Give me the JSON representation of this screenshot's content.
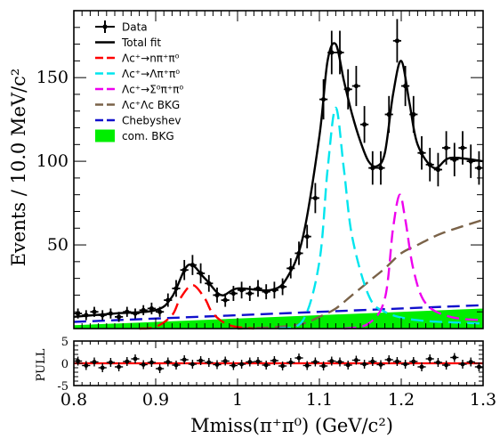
{
  "chart_data": [
    {
      "type": "line",
      "ylabel": "Events / 10.0 MeV/c²",
      "xlim": [
        0.8,
        1.3
      ],
      "ylim": [
        0,
        190
      ],
      "yticks": [
        50,
        100,
        150
      ],
      "grid": false,
      "legend_position": "top-left",
      "legend": [
        {
          "label": "Data",
          "color": "#000000",
          "style": "marker"
        },
        {
          "label": "Total fit",
          "color": "#000000",
          "style": "solid"
        },
        {
          "label": "Λc⁺→nπ⁺π⁰",
          "color": "#ff0000",
          "style": "dashed"
        },
        {
          "label": "Λc⁺→Λπ⁺π⁰",
          "color": "#00e5ee",
          "style": "dashed"
        },
        {
          "label": "Λc⁺→Σ⁰π⁺π⁰",
          "color": "#ee00ee",
          "style": "dashed"
        },
        {
          "label": "Λc⁺Λc BKG",
          "color": "#7a6248",
          "style": "dashed"
        },
        {
          "label": "Chebyshev",
          "color": "#1010cc",
          "style": "dashed"
        },
        {
          "label": "com. BKG",
          "color": "#00ee00",
          "style": "fill"
        }
      ],
      "data_points": [
        {
          "x": 0.805,
          "y": 9,
          "err": 3
        },
        {
          "x": 0.815,
          "y": 8,
          "err": 3
        },
        {
          "x": 0.825,
          "y": 10,
          "err": 3
        },
        {
          "x": 0.835,
          "y": 8,
          "err": 3
        },
        {
          "x": 0.845,
          "y": 9,
          "err": 3
        },
        {
          "x": 0.855,
          "y": 7,
          "err": 3
        },
        {
          "x": 0.865,
          "y": 10,
          "err": 3
        },
        {
          "x": 0.875,
          "y": 9,
          "err": 3
        },
        {
          "x": 0.885,
          "y": 11,
          "err": 3
        },
        {
          "x": 0.895,
          "y": 12,
          "err": 3.5
        },
        {
          "x": 0.905,
          "y": 10,
          "err": 3
        },
        {
          "x": 0.915,
          "y": 17,
          "err": 4
        },
        {
          "x": 0.925,
          "y": 24,
          "err": 5
        },
        {
          "x": 0.935,
          "y": 35,
          "err": 6
        },
        {
          "x": 0.945,
          "y": 38,
          "err": 6
        },
        {
          "x": 0.955,
          "y": 33,
          "err": 6
        },
        {
          "x": 0.965,
          "y": 27,
          "err": 5
        },
        {
          "x": 0.975,
          "y": 20,
          "err": 4.5
        },
        {
          "x": 0.985,
          "y": 17,
          "err": 4
        },
        {
          "x": 0.995,
          "y": 21,
          "err": 4.5
        },
        {
          "x": 1.005,
          "y": 23,
          "err": 5
        },
        {
          "x": 1.015,
          "y": 21,
          "err": 4.5
        },
        {
          "x": 1.025,
          "y": 24,
          "err": 5
        },
        {
          "x": 1.035,
          "y": 22,
          "err": 4.5
        },
        {
          "x": 1.045,
          "y": 23,
          "err": 5
        },
        {
          "x": 1.055,
          "y": 25,
          "err": 5
        },
        {
          "x": 1.065,
          "y": 36,
          "err": 6
        },
        {
          "x": 1.075,
          "y": 45,
          "err": 7
        },
        {
          "x": 1.085,
          "y": 55,
          "err": 7
        },
        {
          "x": 1.095,
          "y": 78,
          "err": 9
        },
        {
          "x": 1.105,
          "y": 137,
          "err": 12
        },
        {
          "x": 1.115,
          "y": 165,
          "err": 13
        },
        {
          "x": 1.125,
          "y": 165,
          "err": 13
        },
        {
          "x": 1.135,
          "y": 143,
          "err": 12
        },
        {
          "x": 1.145,
          "y": 145,
          "err": 12
        },
        {
          "x": 1.155,
          "y": 122,
          "err": 11
        },
        {
          "x": 1.165,
          "y": 96,
          "err": 10
        },
        {
          "x": 1.175,
          "y": 96,
          "err": 10
        },
        {
          "x": 1.185,
          "y": 128,
          "err": 11
        },
        {
          "x": 1.195,
          "y": 172,
          "err": 13
        },
        {
          "x": 1.205,
          "y": 145,
          "err": 12
        },
        {
          "x": 1.215,
          "y": 128,
          "err": 11
        },
        {
          "x": 1.225,
          "y": 105,
          "err": 10
        },
        {
          "x": 1.235,
          "y": 98,
          "err": 10
        },
        {
          "x": 1.245,
          "y": 95,
          "err": 10
        },
        {
          "x": 1.255,
          "y": 108,
          "err": 10
        },
        {
          "x": 1.265,
          "y": 101,
          "err": 10
        },
        {
          "x": 1.275,
          "y": 108,
          "err": 10
        },
        {
          "x": 1.285,
          "y": 100,
          "err": 10
        },
        {
          "x": 1.295,
          "y": 96,
          "err": 10
        }
      ],
      "curves": {
        "total_fit": {
          "x": [
            0.8,
            0.85,
            0.9,
            0.92,
            0.94,
            0.96,
            0.98,
            1.0,
            1.04,
            1.06,
            1.08,
            1.1,
            1.11,
            1.12,
            1.13,
            1.14,
            1.15,
            1.16,
            1.17,
            1.18,
            1.19,
            1.2,
            1.21,
            1.22,
            1.24,
            1.26,
            1.3
          ],
          "y": [
            7,
            9,
            11,
            19,
            38,
            30,
            20,
            24,
            23,
            30,
            55,
            115,
            160,
            170,
            148,
            128,
            112,
            100,
            97,
            105,
            140,
            160,
            135,
            110,
            96,
            102,
            100
          ]
        },
        "n_pi_pi0": {
          "x": [
            0.88,
            0.9,
            0.92,
            0.93,
            0.945,
            0.96,
            0.97,
            0.99,
            1.02
          ],
          "y": [
            0,
            1,
            8,
            18,
            26,
            18,
            9,
            2,
            0
          ]
        },
        "lambda_pi_pi0": {
          "x": [
            1.05,
            1.08,
            1.1,
            1.11,
            1.12,
            1.13,
            1.14,
            1.16,
            1.18,
            1.22,
            1.3
          ],
          "y": [
            0,
            5,
            40,
            95,
            132,
            95,
            55,
            20,
            10,
            5,
            3
          ]
        },
        "sigma0_pi_pi0": {
          "x": [
            1.13,
            1.16,
            1.18,
            1.19,
            1.198,
            1.205,
            1.215,
            1.23,
            1.26,
            1.3
          ],
          "y": [
            0,
            3,
            18,
            60,
            80,
            65,
            35,
            15,
            7,
            5
          ]
        },
        "lclc_bkg": {
          "x": [
            1.0,
            1.05,
            1.08,
            1.1,
            1.12,
            1.14,
            1.16,
            1.18,
            1.2,
            1.22,
            1.25,
            1.3
          ],
          "y": [
            0,
            1,
            3,
            7,
            12,
            20,
            28,
            36,
            45,
            50,
            57,
            65
          ]
        },
        "chebyshev": {
          "x": [
            0.8,
            1.3
          ],
          "y": [
            4,
            14
          ]
        },
        "com_bkg": {
          "x": [
            0.8,
            1.3
          ],
          "y": [
            2,
            12
          ]
        }
      }
    },
    {
      "type": "scatter",
      "ylabel": "PULL",
      "xlabel": "Mmiss(π⁺π⁰) (GeV/c²)",
      "xlim": [
        0.8,
        1.3
      ],
      "xticks": [
        0.8,
        0.9,
        1.0,
        1.1,
        1.2,
        1.3
      ],
      "xtick_labels": [
        "0.8",
        "0.9",
        "1",
        "1.1",
        "1.2",
        "1.3"
      ],
      "ylim": [
        -5,
        5
      ],
      "yticks": [
        -5,
        0,
        5
      ],
      "reference_line": {
        "y": 0,
        "color": "#ff0000"
      },
      "x": [
        0.805,
        0.815,
        0.825,
        0.835,
        0.845,
        0.855,
        0.865,
        0.875,
        0.885,
        0.895,
        0.905,
        0.915,
        0.925,
        0.935,
        0.945,
        0.955,
        0.965,
        0.975,
        0.985,
        0.995,
        1.005,
        1.015,
        1.025,
        1.035,
        1.045,
        1.055,
        1.065,
        1.075,
        1.085,
        1.095,
        1.105,
        1.115,
        1.125,
        1.135,
        1.145,
        1.155,
        1.165,
        1.175,
        1.185,
        1.195,
        1.205,
        1.215,
        1.225,
        1.235,
        1.245,
        1.255,
        1.265,
        1.275,
        1.285,
        1.295
      ],
      "y": [
        0.5,
        -0.5,
        0.3,
        -1.0,
        0.2,
        -0.8,
        0.4,
        1.0,
        -0.3,
        0.2,
        -1.2,
        0.3,
        -0.4,
        0.8,
        -0.2,
        0.6,
        0.2,
        -0.3,
        0.5,
        -0.5,
        -0.2,
        0.3,
        0.4,
        -0.4,
        0.6,
        -0.6,
        0.2,
        1.2,
        -0.5,
        0.3,
        -0.6,
        0.5,
        0.3,
        -0.4,
        0.7,
        -0.2,
        0.4,
        -0.3,
        0.8,
        0.4,
        -0.2,
        0.4,
        -0.8,
        1.0,
        0.2,
        -0.4,
        1.3,
        -0.2,
        0.3,
        -0.8
      ],
      "err": 1
    }
  ]
}
